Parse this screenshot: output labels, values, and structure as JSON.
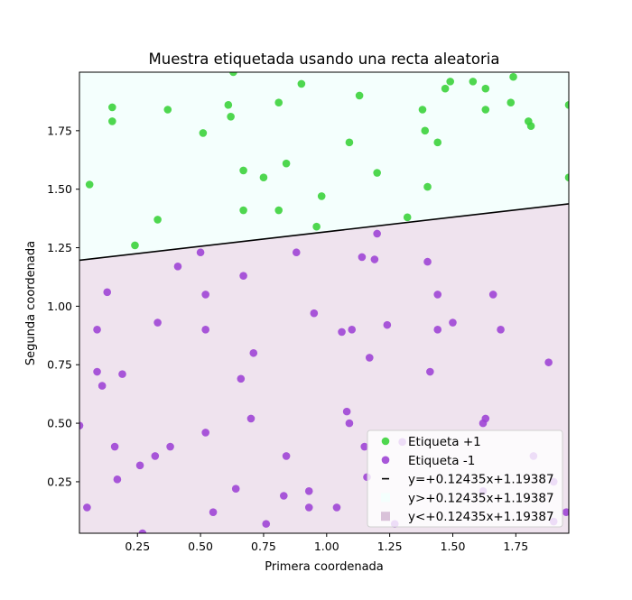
{
  "chart_data": {
    "type": "scatter",
    "title": "Muestra etiquetada usando una recta aleatoria",
    "xlabel": "Primera coordenada",
    "ylabel": "Segunda coordenada",
    "xlim": [
      0.02,
      1.96
    ],
    "ylim": [
      0.03,
      2.0
    ],
    "x_ticks": [
      0.25,
      0.5,
      0.75,
      1.0,
      1.25,
      1.5,
      1.75
    ],
    "y_ticks": [
      0.25,
      0.5,
      0.75,
      1.0,
      1.25,
      1.5,
      1.75
    ],
    "x_tick_labels": [
      "0.25",
      "0.50",
      "0.75",
      "1.00",
      "1.25",
      "1.50",
      "1.75"
    ],
    "y_tick_labels": [
      "0.25",
      "0.50",
      "0.75",
      "1.00",
      "1.25",
      "1.50",
      "1.75"
    ],
    "grid": false,
    "legend_position": "lower-right",
    "line": {
      "slope": 0.12435,
      "intercept": 1.19387,
      "color": "#000000"
    },
    "regions": {
      "above_color": "#f4fffd",
      "below_color": "#efe3ee"
    },
    "series": [
      {
        "name": "Etiqueta +1",
        "color": "#3cd33c",
        "points": [
          [
            0.06,
            1.52
          ],
          [
            0.15,
            1.85
          ],
          [
            0.15,
            1.79
          ],
          [
            0.24,
            1.26
          ],
          [
            0.33,
            1.37
          ],
          [
            0.37,
            1.84
          ],
          [
            0.51,
            1.74
          ],
          [
            0.61,
            1.86
          ],
          [
            0.62,
            1.81
          ],
          [
            0.63,
            2.0
          ],
          [
            0.67,
            1.58
          ],
          [
            0.67,
            1.41
          ],
          [
            0.75,
            1.55
          ],
          [
            0.81,
            1.87
          ],
          [
            0.81,
            1.41
          ],
          [
            0.84,
            1.61
          ],
          [
            0.9,
            1.95
          ],
          [
            0.96,
            1.34
          ],
          [
            0.98,
            1.47
          ],
          [
            1.09,
            1.7
          ],
          [
            1.13,
            1.9
          ],
          [
            1.2,
            1.57
          ],
          [
            1.32,
            1.38
          ],
          [
            1.38,
            1.84
          ],
          [
            1.39,
            1.75
          ],
          [
            1.4,
            1.51
          ],
          [
            1.44,
            1.7
          ],
          [
            1.47,
            1.93
          ],
          [
            1.49,
            1.96
          ],
          [
            1.58,
            1.96
          ],
          [
            1.63,
            1.93
          ],
          [
            1.63,
            1.84
          ],
          [
            1.73,
            1.87
          ],
          [
            1.74,
            1.98
          ],
          [
            1.8,
            1.79
          ],
          [
            1.81,
            1.77
          ],
          [
            1.96,
            1.86
          ],
          [
            1.96,
            1.55
          ]
        ]
      },
      {
        "name": "Etiqueta -1",
        "color": "#9f45d5",
        "points": [
          [
            0.02,
            0.49
          ],
          [
            0.05,
            0.14
          ],
          [
            0.09,
            0.72
          ],
          [
            0.09,
            0.9
          ],
          [
            0.11,
            0.66
          ],
          [
            0.13,
            1.06
          ],
          [
            0.16,
            0.4
          ],
          [
            0.17,
            0.26
          ],
          [
            0.19,
            0.71
          ],
          [
            0.26,
            0.32
          ],
          [
            0.27,
            0.03
          ],
          [
            0.32,
            0.36
          ],
          [
            0.33,
            0.93
          ],
          [
            0.38,
            0.4
          ],
          [
            0.41,
            1.17
          ],
          [
            0.5,
            1.23
          ],
          [
            0.52,
            0.9
          ],
          [
            0.52,
            1.05
          ],
          [
            0.52,
            0.46
          ],
          [
            0.55,
            0.12
          ],
          [
            0.64,
            0.22
          ],
          [
            0.66,
            0.69
          ],
          [
            0.67,
            1.13
          ],
          [
            0.7,
            0.52
          ],
          [
            0.71,
            0.8
          ],
          [
            0.76,
            0.07
          ],
          [
            0.83,
            0.19
          ],
          [
            0.84,
            0.36
          ],
          [
            0.88,
            1.23
          ],
          [
            0.93,
            0.21
          ],
          [
            0.93,
            0.14
          ],
          [
            0.95,
            0.97
          ],
          [
            1.04,
            0.14
          ],
          [
            1.06,
            0.89
          ],
          [
            1.08,
            0.55
          ],
          [
            1.09,
            0.5
          ],
          [
            1.1,
            0.9
          ],
          [
            1.14,
            1.21
          ],
          [
            1.15,
            0.4
          ],
          [
            1.16,
            0.27
          ],
          [
            1.17,
            0.78
          ],
          [
            1.19,
            1.2
          ],
          [
            1.2,
            1.31
          ],
          [
            1.24,
            0.92
          ],
          [
            1.27,
            0.07
          ],
          [
            1.3,
            0.42
          ],
          [
            1.4,
            1.19
          ],
          [
            1.41,
            0.72
          ],
          [
            1.44,
            1.05
          ],
          [
            1.44,
            0.9
          ],
          [
            1.5,
            0.93
          ],
          [
            1.62,
            0.21
          ],
          [
            1.63,
            0.52
          ],
          [
            1.62,
            0.5
          ],
          [
            1.66,
            1.05
          ],
          [
            1.69,
            0.9
          ],
          [
            1.82,
            0.36
          ],
          [
            1.88,
            0.76
          ],
          [
            1.9,
            0.25
          ],
          [
            1.9,
            0.08
          ],
          [
            1.95,
            0.12
          ]
        ]
      }
    ],
    "legend": [
      {
        "label": "Etiqueta +1",
        "marker": "circle",
        "color": "#3cd33c"
      },
      {
        "label": "Etiqueta -1",
        "marker": "circle",
        "color": "#9f45d5"
      },
      {
        "label": "y=+0.12435x+1.19387",
        "marker": "line",
        "color": "#000000"
      },
      {
        "label": "y>+0.12435x+1.19387",
        "marker": "square",
        "color": "#f4fffd"
      },
      {
        "label": "y<+0.12435x+1.19387",
        "marker": "square",
        "color": "#d9c2d9"
      }
    ]
  }
}
